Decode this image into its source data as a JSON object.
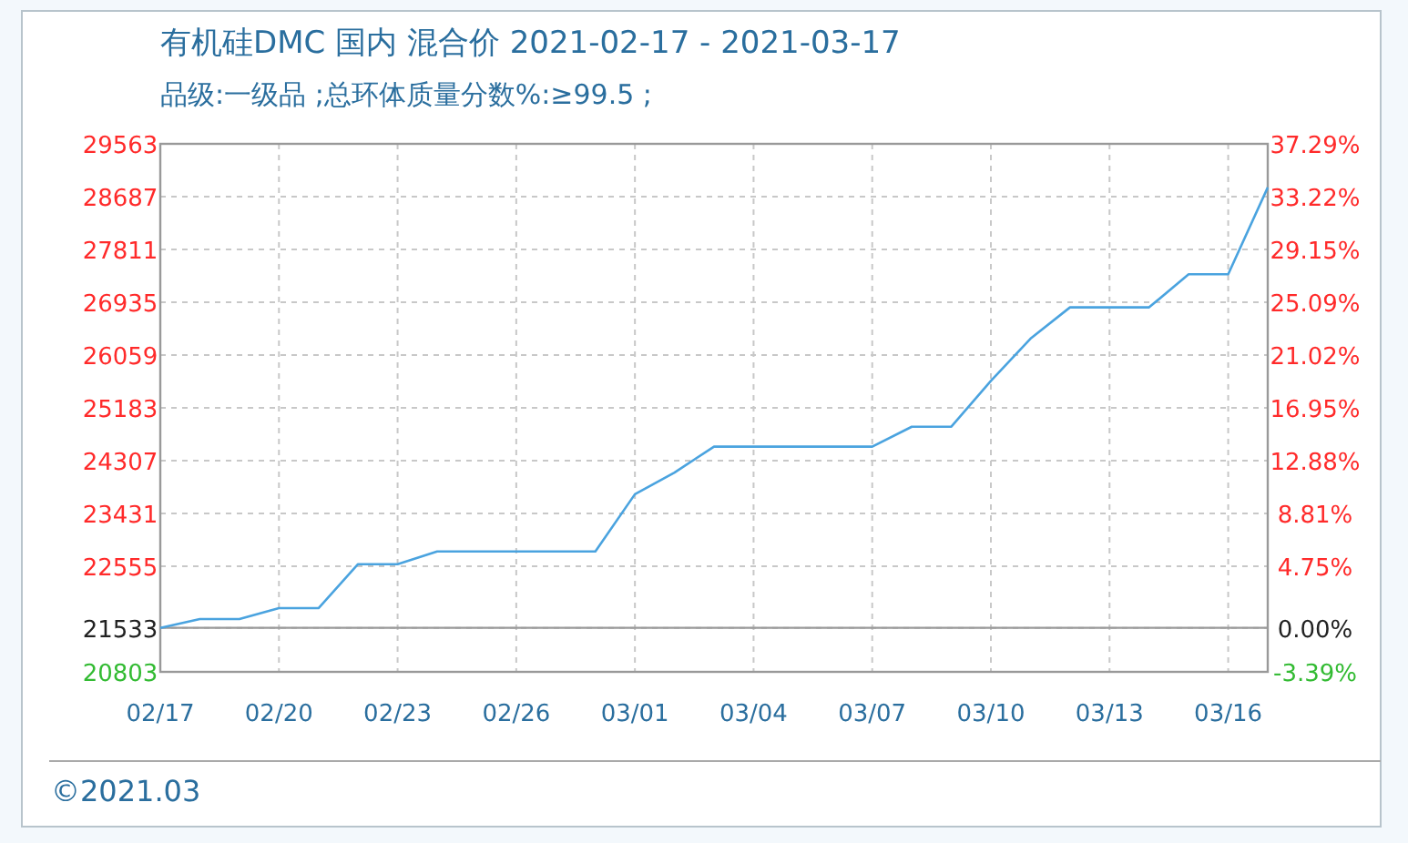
{
  "chart_data": {
    "type": "line",
    "title": "有机硅DMC 国内 混合价 2021-02-17 - 2021-03-17",
    "subtitle": "品级:一级品 ;总环体质量分数%:≥99.5 ;",
    "x": [
      "2021-02-17",
      "2021-02-18",
      "2021-02-19",
      "2021-02-20",
      "2021-02-21",
      "2021-02-22",
      "2021-02-23",
      "2021-02-24",
      "2021-02-25",
      "2021-02-26",
      "2021-02-27",
      "2021-02-28",
      "2021-03-01",
      "2021-03-02",
      "2021-03-03",
      "2021-03-04",
      "2021-03-05",
      "2021-03-06",
      "2021-03-07",
      "2021-03-08",
      "2021-03-09",
      "2021-03-10",
      "2021-03-11",
      "2021-03-12",
      "2021-03-13",
      "2021-03-14",
      "2021-03-15",
      "2021-03-16",
      "2021-03-17"
    ],
    "series": [
      {
        "color": "#4aa3df",
        "values": [
          21533,
          21680,
          21680,
          21860,
          21860,
          22590,
          22590,
          22800,
          22800,
          22800,
          22800,
          22800,
          23750,
          24110,
          24540,
          24540,
          24540,
          24540,
          24540,
          24870,
          24870,
          25630,
          26330,
          26850,
          26850,
          26850,
          27400,
          27400,
          28840
        ]
      }
    ],
    "xlim": [
      "2021-02-17",
      "2021-03-17"
    ],
    "xticks": [
      {
        "value": "2021-02-17",
        "label": "02/17"
      },
      {
        "value": "2021-02-20",
        "label": "02/20"
      },
      {
        "value": "2021-02-23",
        "label": "02/23"
      },
      {
        "value": "2021-02-26",
        "label": "02/26"
      },
      {
        "value": "2021-03-01",
        "label": "03/01"
      },
      {
        "value": "2021-03-04",
        "label": "03/04"
      },
      {
        "value": "2021-03-07",
        "label": "03/07"
      },
      {
        "value": "2021-03-10",
        "label": "03/10"
      },
      {
        "value": "2021-03-13",
        "label": "03/13"
      },
      {
        "value": "2021-03-16",
        "label": "03/16"
      }
    ],
    "ylim": [
      20803,
      29563
    ],
    "yticks": [
      29563,
      28687,
      27811,
      26935,
      26059,
      25183,
      24307,
      23431,
      22555,
      21533,
      20803
    ],
    "y2lim": [
      -3.39,
      37.29
    ],
    "y2ticks": [
      {
        "value": 37.29,
        "label": "37.29%"
      },
      {
        "value": 33.22,
        "label": "33.22%"
      },
      {
        "value": 29.15,
        "label": "29.15%"
      },
      {
        "value": 25.09,
        "label": "25.09%"
      },
      {
        "value": 21.02,
        "label": "21.02%"
      },
      {
        "value": 16.95,
        "label": "16.95%"
      },
      {
        "value": 12.88,
        "label": "12.88%"
      },
      {
        "value": 8.81,
        "label": "8.81%"
      },
      {
        "value": 4.75,
        "label": "4.75%"
      },
      {
        "value": 0,
        "label": "0.00%"
      },
      {
        "value": -3.39,
        "label": "-3.39%"
      }
    ],
    "grid": true,
    "line_style": "solid",
    "marker": "none",
    "annotations": [
      "©2021.03"
    ]
  }
}
